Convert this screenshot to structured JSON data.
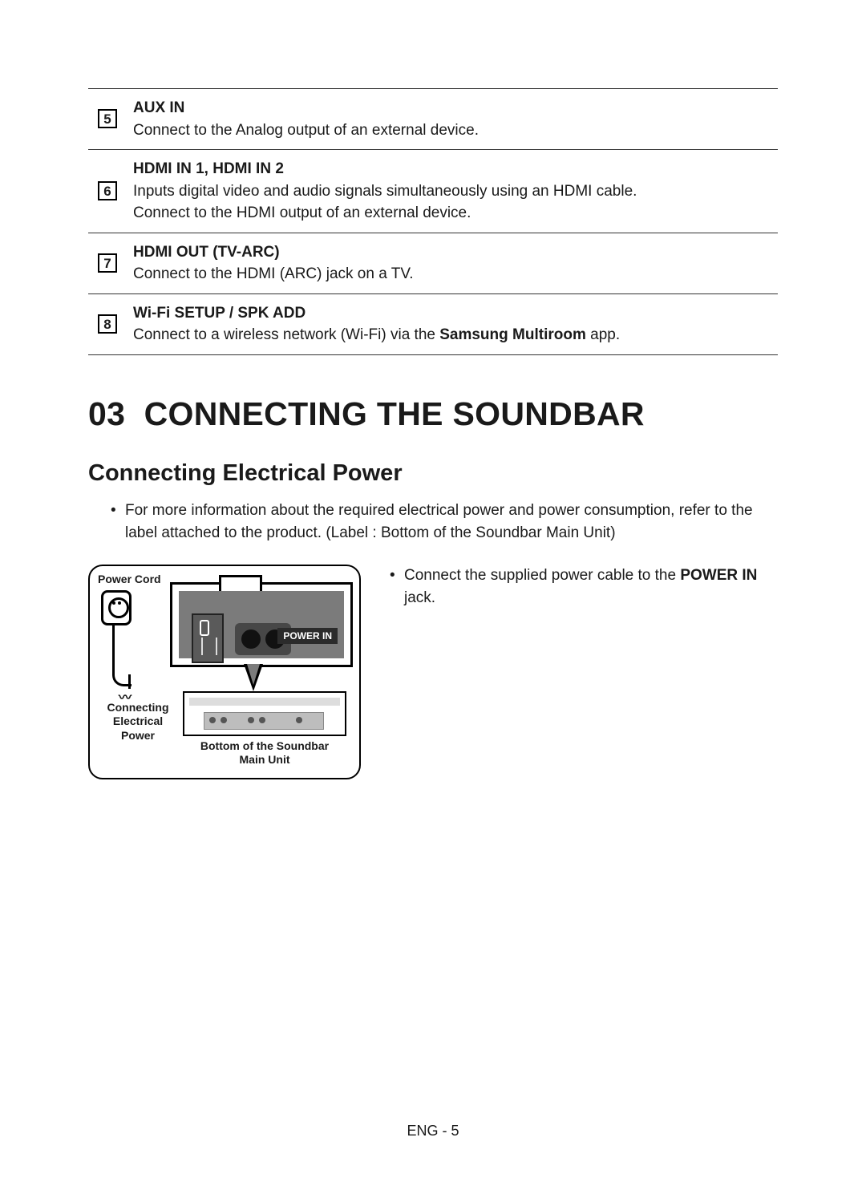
{
  "ports": [
    {
      "num": "5",
      "title": "AUX IN",
      "lines": [
        "Connect to the Analog output of an external device."
      ]
    },
    {
      "num": "6",
      "title": "HDMI IN 1, HDMI IN 2",
      "lines": [
        "Inputs digital video and audio signals simultaneously using an HDMI cable.",
        "Connect to the HDMI output of an external device."
      ]
    },
    {
      "num": "7",
      "title": "HDMI OUT (TV-ARC)",
      "lines": [
        "Connect to the HDMI (ARC) jack on a TV."
      ]
    },
    {
      "num": "8",
      "title": "Wi-Fi SETUP / SPK ADD",
      "lines": [
        "Connect to a wireless network (Wi-Fi) via the ",
        "Samsung Multiroom",
        " app."
      ],
      "bold_idx": 1
    }
  ],
  "section": {
    "number": "03",
    "title": "CONNECTING THE SOUNDBAR"
  },
  "sub": "Connecting Electrical Power",
  "intro_bullet": "For more information about the required electrical power and power consumption, refer to the label attached to the product. (Label : Bottom of the Soundbar Main Unit)",
  "diagram": {
    "power_cord": "Power Cord",
    "connecting": "Connecting\nElectrical Power",
    "bottom": "Bottom of the Soundbar\nMain Unit",
    "power_in": "POWER IN"
  },
  "right_bullet_pre": "Connect the supplied power cable to the ",
  "right_bullet_bold": "POWER IN",
  "right_bullet_post": " jack.",
  "footer": "ENG - 5"
}
